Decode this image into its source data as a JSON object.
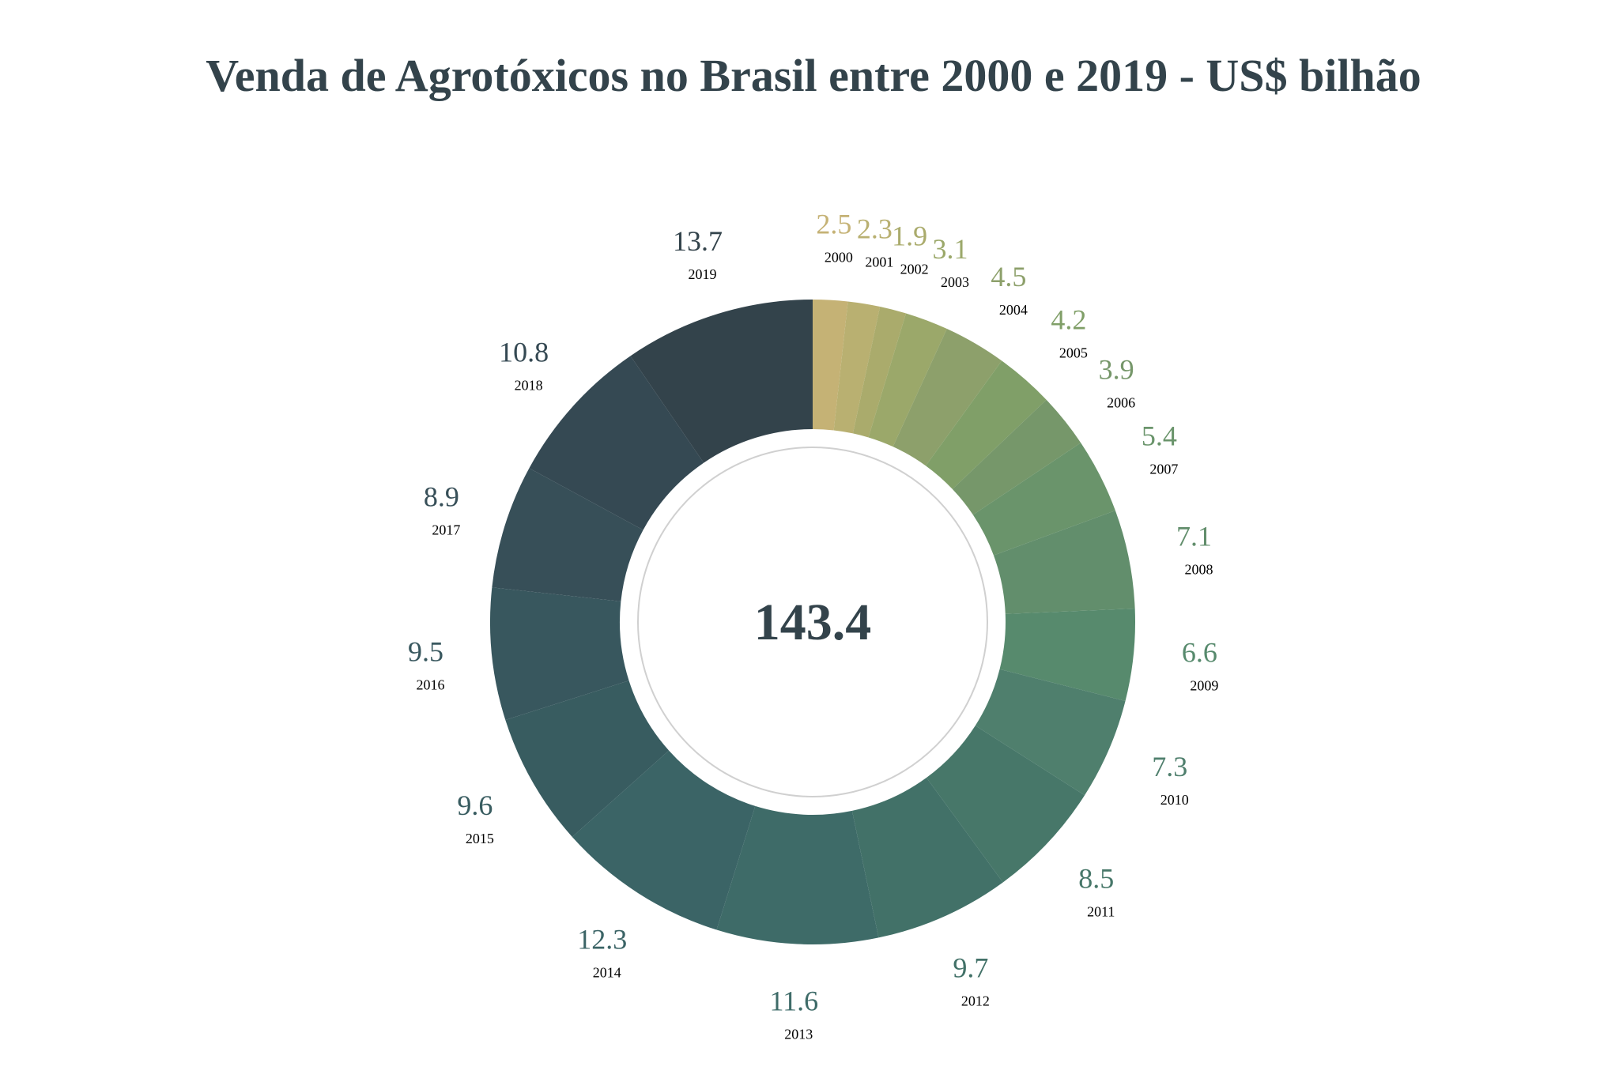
{
  "chart_data": {
    "type": "pie",
    "subtype": "donut",
    "title": "Venda de Agrotóxicos no Brasil entre 2000 e 2019 - US$ bilhão",
    "center_total": "143.4",
    "start": "top, clockwise",
    "categories": [
      "2000",
      "2001",
      "2002",
      "2003",
      "2004",
      "2005",
      "2006",
      "2007",
      "2008",
      "2009",
      "2010",
      "2011",
      "2012",
      "2013",
      "2014",
      "2015",
      "2016",
      "2017",
      "2018",
      "2019"
    ],
    "values": [
      2.5,
      2.3,
      1.9,
      3.1,
      4.5,
      4.2,
      3.9,
      5.4,
      7.1,
      6.6,
      7.3,
      8.5,
      9.7,
      11.6,
      12.3,
      9.6,
      9.5,
      8.9,
      10.8,
      13.7
    ],
    "value_labels": [
      "2.5",
      "2.3",
      "1.9",
      "3.1",
      "4.5",
      "4.2",
      "3.9",
      "5.4",
      "7.1",
      "6.6",
      "7.3",
      "8.5",
      "9.7",
      "11.6",
      "12.3",
      "9.6",
      "9.5",
      "8.9",
      "10.8",
      "13.7"
    ],
    "colors": [
      "#c5b275",
      "#b9b071",
      "#aaab6c",
      "#9ba86a",
      "#8da06b",
      "#809f68",
      "#76976a",
      "#6a946b",
      "#628e6c",
      "#578a6d",
      "#4f7f6d",
      "#477769",
      "#427168",
      "#3e6b68",
      "#3b6466",
      "#385c60",
      "#38575e",
      "#374f58",
      "#354953",
      "#33434b"
    ],
    "year_label_color": "#000000",
    "title_color": "#33434b"
  }
}
